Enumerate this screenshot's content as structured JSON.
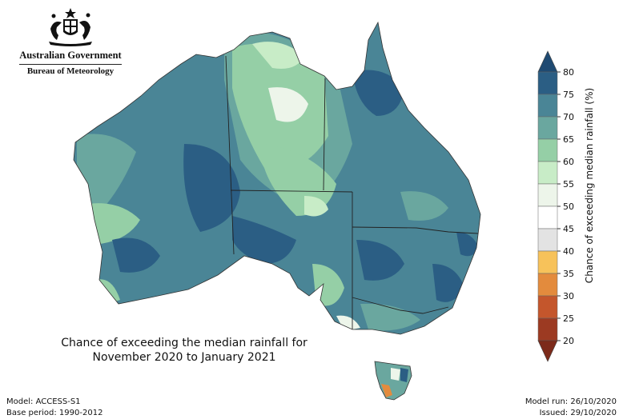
{
  "branding": {
    "government": "Australian Government",
    "agency": "Bureau of Meteorology"
  },
  "map": {
    "title_line1": "Chance of exceeding the median rainfall for",
    "title_line2": "November 2020 to January 2021",
    "regions": [
      {
        "name": "Western Australia",
        "dominant_class": "70-75"
      },
      {
        "name": "Northern Territory",
        "dominant_class": "60-65"
      },
      {
        "name": "South Australia",
        "dominant_class": "75-80"
      },
      {
        "name": "Queensland",
        "dominant_class": "70-75"
      },
      {
        "name": "New South Wales",
        "dominant_class": "70-75"
      },
      {
        "name": "Victoria",
        "dominant_class": "65-70"
      },
      {
        "name": "Tasmania",
        "dominant_class": "65-70"
      }
    ]
  },
  "legend": {
    "label": "Chance of exceeding median rainfall (%)",
    "ticks": [
      "80",
      "75",
      "70",
      "65",
      "60",
      "55",
      "50",
      "45",
      "40",
      "35",
      "30",
      "25",
      "20"
    ],
    "colors": {
      "75-80": "#2b5e84",
      "70-75": "#4a8596",
      "65-70": "#6aa79f",
      "60-65": "#95cfa6",
      "55-60": "#c8ecc7",
      "50-55": "#edf5ea",
      "45-50": "#ffffff",
      "40-45": "#e3e3e3",
      "35-40": "#f7c25a",
      "30-35": "#e38b3d",
      "25-30": "#c4562c",
      "20-25": "#9c3a22",
      "top_arrow": "#1f4a72",
      "bottom_arrow": "#7c2a1a"
    }
  },
  "footer": {
    "model": "Model: ACCESS-S1",
    "base_period": "Base period: 1990-2012",
    "model_run": "Model run: 26/10/2020",
    "issued": "Issued: 29/10/2020"
  }
}
